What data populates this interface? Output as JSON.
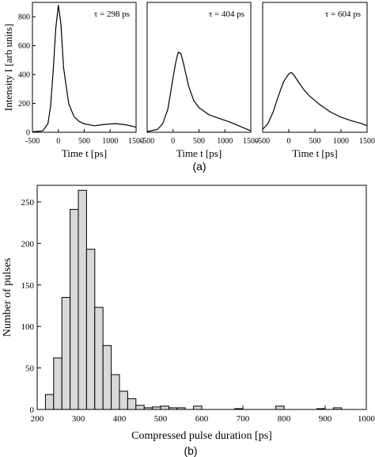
{
  "figure": {
    "panel_labels": [
      "(a)",
      "(b)"
    ]
  },
  "chart_data": [
    {
      "type": "line",
      "panel": "a",
      "annotation": "τ = 298 ps",
      "xlabel": "Time t [ps]",
      "ylabel": "Intensity I [arb units]",
      "xlim": [
        -500,
        1500
      ],
      "ylim": [
        0,
        900
      ],
      "xticks": [
        -500,
        0,
        500,
        1000,
        1500
      ],
      "yticks": [
        0,
        200,
        400,
        600,
        800
      ],
      "series": [
        {
          "x": [
            -500,
            -300,
            -200,
            -150,
            -100,
            -50,
            0,
            50,
            100,
            200,
            300,
            400,
            500,
            700,
            900,
            1100,
            1300,
            1500
          ],
          "y": [
            3,
            10,
            60,
            180,
            420,
            720,
            880,
            750,
            450,
            200,
            110,
            75,
            58,
            45,
            55,
            60,
            52,
            35
          ]
        }
      ]
    },
    {
      "type": "line",
      "panel": "a",
      "annotation": "τ = 404 ps",
      "xlabel": "Time t [ps]",
      "xlim": [
        -500,
        1500
      ],
      "ylim": [
        0,
        900
      ],
      "xticks": [
        -500,
        0,
        500,
        1000,
        1500
      ],
      "series": [
        {
          "x": [
            -500,
            -300,
            -200,
            -100,
            0,
            50,
            100,
            150,
            200,
            300,
            400,
            500,
            700,
            900,
            1100,
            1300,
            1500
          ],
          "y": [
            5,
            20,
            60,
            160,
            380,
            480,
            555,
            545,
            480,
            320,
            220,
            170,
            120,
            95,
            70,
            40,
            10
          ]
        }
      ]
    },
    {
      "type": "line",
      "panel": "a",
      "annotation": "τ = 604 ps",
      "xlabel": "Time t [ps]",
      "xlim": [
        -500,
        1500
      ],
      "ylim": [
        0,
        900
      ],
      "xticks": [
        -500,
        0,
        500,
        1000,
        1500
      ],
      "series": [
        {
          "x": [
            -500,
            -400,
            -300,
            -200,
            -100,
            0,
            50,
            100,
            200,
            300,
            400,
            600,
            800,
            1000,
            1200,
            1400,
            1500
          ],
          "y": [
            20,
            60,
            140,
            250,
            350,
            405,
            415,
            395,
            340,
            290,
            250,
            190,
            140,
            105,
            80,
            60,
            45
          ]
        }
      ]
    },
    {
      "type": "bar",
      "panel": "b",
      "xlabel": "Compressed pulse duration [ps]",
      "ylabel": "Number of pulses",
      "xlim": [
        200,
        1000
      ],
      "ylim": [
        0,
        270
      ],
      "xticks": [
        200,
        300,
        400,
        500,
        600,
        700,
        800,
        900,
        1000
      ],
      "yticks": [
        0,
        50,
        100,
        150,
        200,
        250
      ],
      "bin_width": 20,
      "bin_starts": [
        220,
        240,
        260,
        280,
        300,
        320,
        340,
        360,
        380,
        400,
        420,
        440,
        460,
        480,
        500,
        520,
        540,
        580,
        680,
        780,
        880,
        920
      ],
      "values": [
        18,
        62,
        135,
        241,
        264,
        193,
        123,
        77,
        42,
        22,
        13,
        5,
        2,
        3,
        4,
        2,
        2,
        4,
        1,
        4,
        1,
        2
      ]
    }
  ]
}
